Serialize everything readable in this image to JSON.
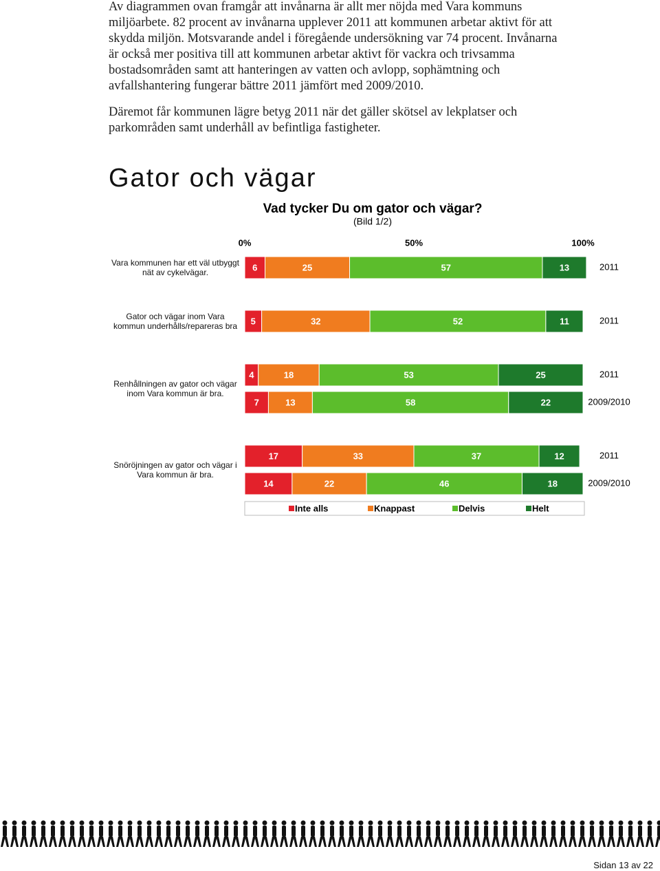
{
  "body": {
    "paragraphs": [
      "Av diagrammen ovan framgår att invånarna är allt mer nöjda med Vara kommuns miljöarbete. 82 procent av invånarna upplever 2011 att kommunen arbetar aktivt för att skydda miljön. Motsvarande andel i föregående undersökning var 74 procent. Invånarna är också mer positiva till att kommunen arbetar aktivt för vackra och trivsamma bostadsområden samt att hanteringen av vatten och avlopp, sophämtning och avfallshantering fungerar bättre 2011 jämfört med 2009/2010.",
      "Däremot får kommunen lägre betyg 2011 när det gäller skötsel av lekplatser och parkområden samt underhåll av befintliga fastigheter."
    ],
    "heading": "Gator och vägar"
  },
  "chart_data": {
    "type": "bar",
    "orientation": "horizontal",
    "stacked": true,
    "title": "Vad tycker Du om gator och vägar?",
    "subtitle": "(Bild 1/2)",
    "xlim": [
      0,
      100
    ],
    "xticks": [
      {
        "value": 0,
        "label": "0%"
      },
      {
        "value": 50,
        "label": "50%"
      },
      {
        "value": 100,
        "label": "100%"
      }
    ],
    "series": [
      {
        "name": "Inte alls",
        "color": "#e3212b"
      },
      {
        "name": "Knappast",
        "color": "#f07c1f"
      },
      {
        "name": "Delvis",
        "color": "#5cbd2c"
      },
      {
        "name": "Helt",
        "color": "#1e7a2c"
      }
    ],
    "groups": [
      {
        "label": "Vara kommunen har ett väl utbyggt nät av cykelvägar.",
        "bars": [
          {
            "year": "2011",
            "values": [
              6,
              25,
              57,
              13
            ]
          }
        ]
      },
      {
        "label": "Gator och vägar inom Vara kommun underhålls/repareras bra",
        "bars": [
          {
            "year": "2011",
            "values": [
              5,
              32,
              52,
              11
            ]
          }
        ]
      },
      {
        "label": "Renhållningen av gator och vägar inom Vara kommun är bra.",
        "bars": [
          {
            "year": "2011",
            "values": [
              4,
              18,
              53,
              25
            ]
          },
          {
            "year": "2009/2010",
            "values": [
              7,
              13,
              58,
              22
            ]
          }
        ]
      },
      {
        "label": "Snöröjningen av gator och vägar i Vara kommun är bra.",
        "bars": [
          {
            "year": "2011",
            "values": [
              17,
              33,
              37,
              12
            ]
          },
          {
            "year": "2009/2010",
            "values": [
              14,
              22,
              46,
              18
            ]
          }
        ]
      }
    ]
  },
  "footer": {
    "page": "Sidan 13 av 22"
  }
}
